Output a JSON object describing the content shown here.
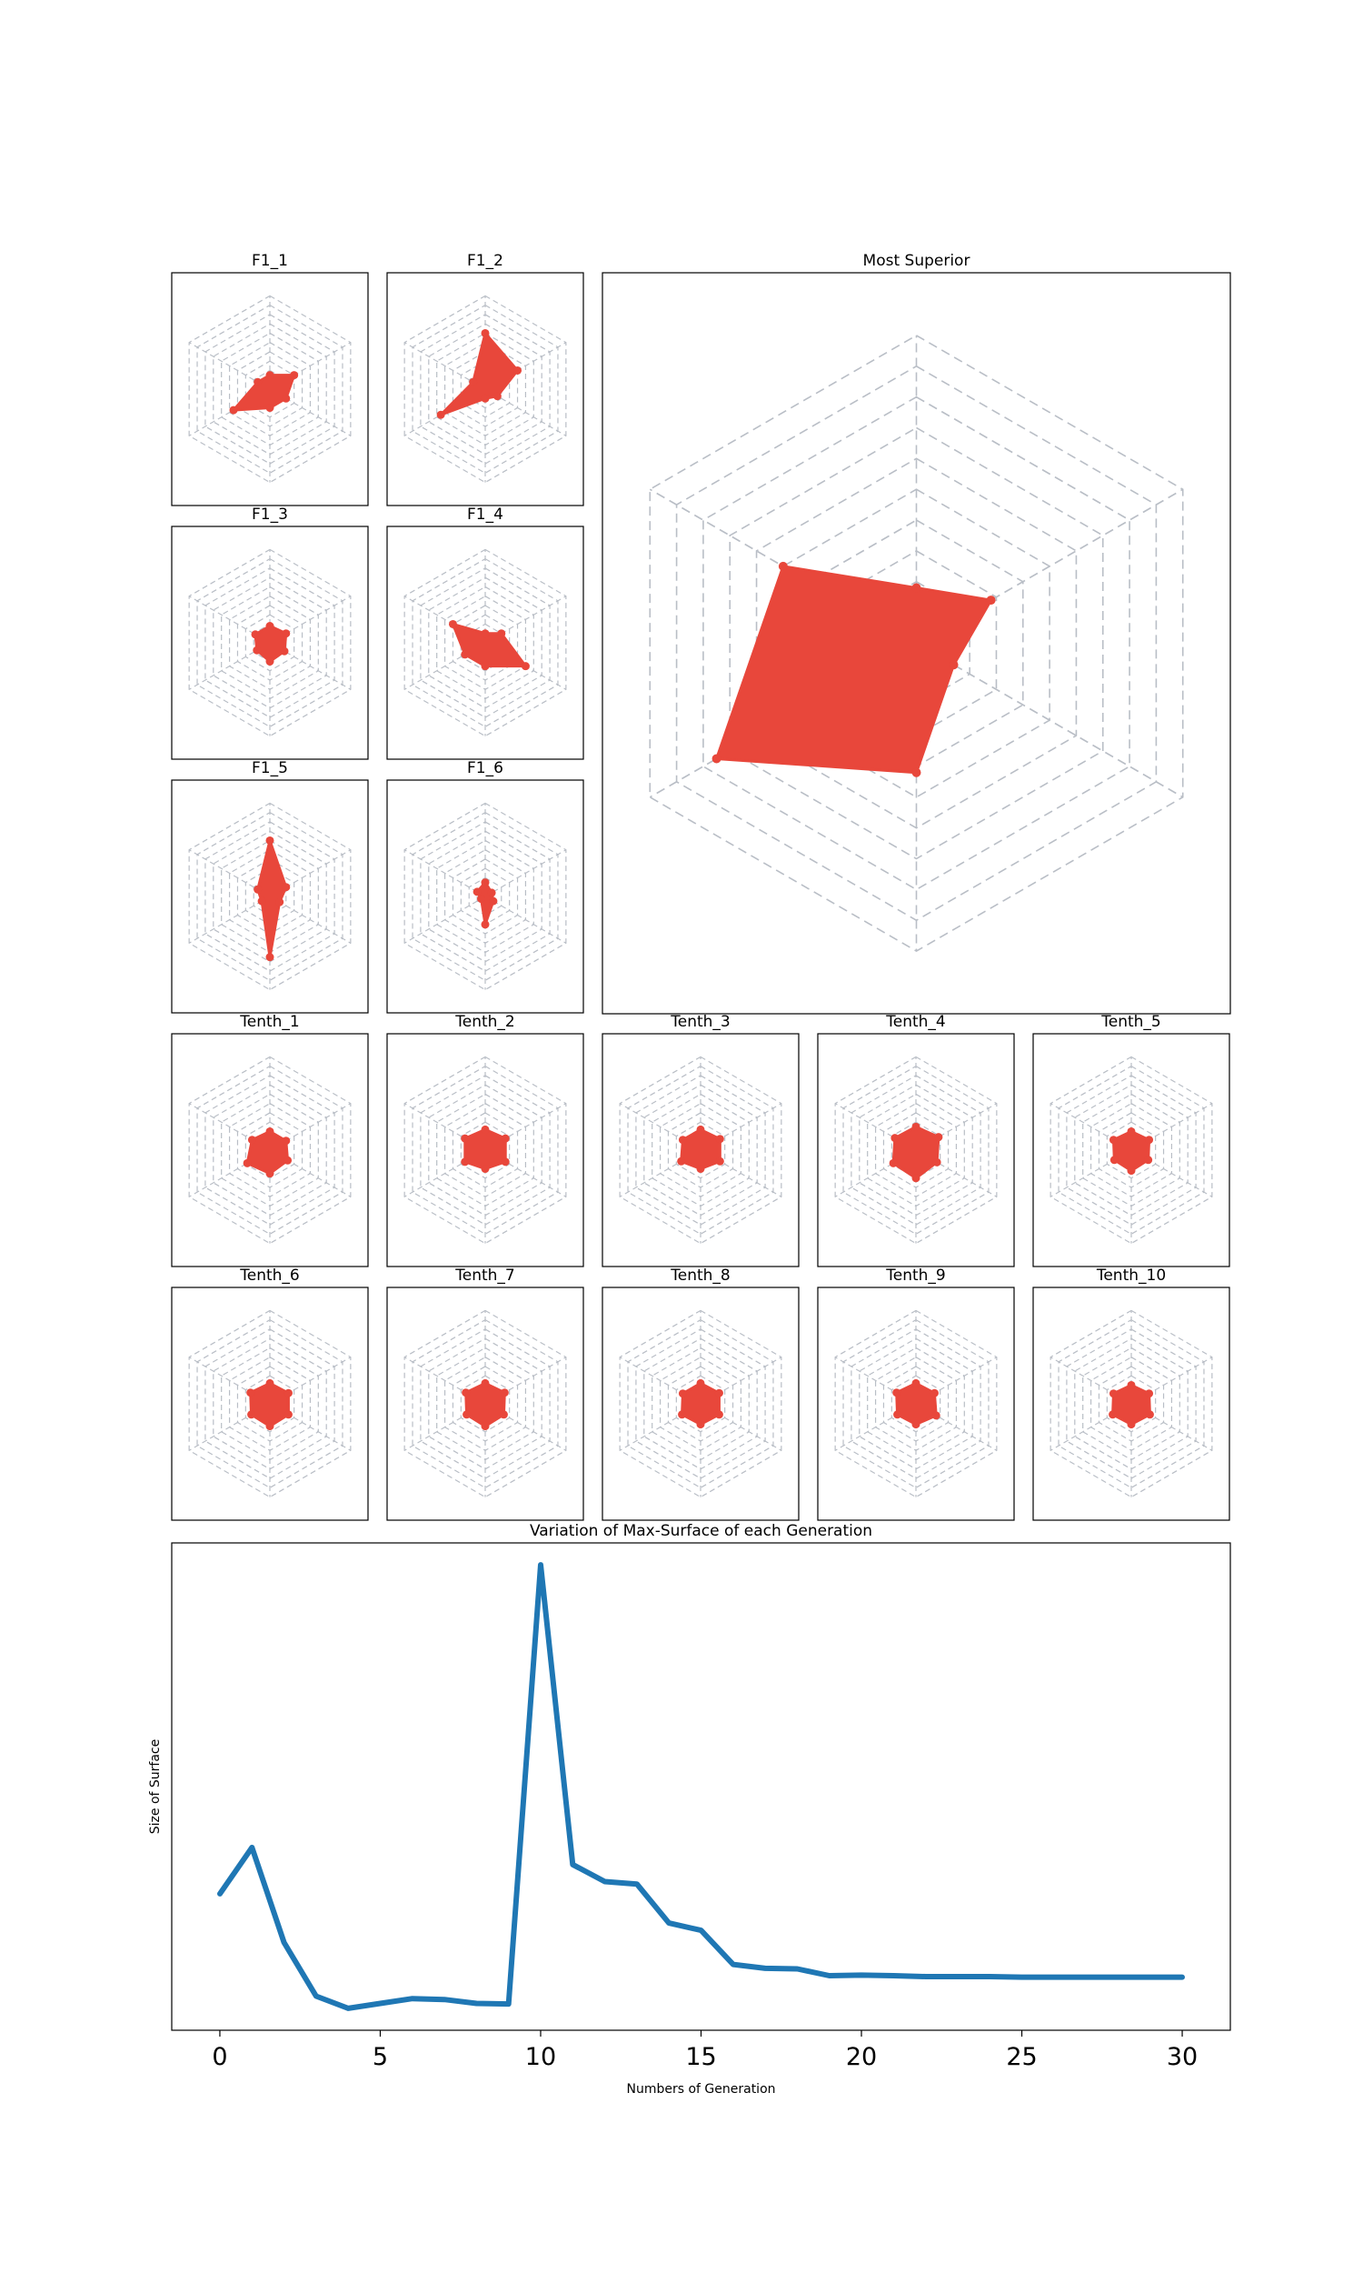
{
  "chart_data": [
    {
      "type": "radar",
      "title": "F1_1",
      "axes": 6,
      "rings": 10,
      "grid": "dashed",
      "max": 10,
      "values": [
        1.5,
        3,
        2,
        2,
        4.5,
        1.5
      ]
    },
    {
      "type": "radar",
      "title": "F1_2",
      "axes": 6,
      "rings": 10,
      "grid": "dashed",
      "max": 10,
      "values": [
        6,
        4,
        1.5,
        1,
        5.5,
        1.5
      ]
    },
    {
      "type": "radar",
      "title": "F1_3",
      "axes": 6,
      "rings": 10,
      "grid": "dashed",
      "max": 10,
      "values": [
        1.8,
        2,
        1.8,
        2,
        1.6,
        1.8
      ]
    },
    {
      "type": "radar",
      "title": "F1_4",
      "axes": 6,
      "rings": 10,
      "grid": "dashed",
      "max": 10,
      "values": [
        1,
        2,
        5,
        2.5,
        2.5,
        4
      ]
    },
    {
      "type": "radar",
      "title": "F1_5",
      "axes": 6,
      "rings": 10,
      "grid": "dashed",
      "max": 10,
      "values": [
        6,
        2,
        1.2,
        6.5,
        1,
        1.5
      ]
    },
    {
      "type": "radar",
      "title": "F1_6",
      "axes": 6,
      "rings": 10,
      "grid": "dashed",
      "max": 10,
      "values": [
        1.5,
        0.8,
        1,
        3,
        0.5,
        1
      ]
    },
    {
      "type": "radar",
      "title": "Most Superior",
      "axes": 6,
      "rings": 10,
      "grid": "dashed",
      "max": 10,
      "values": [
        1.8,
        2.8,
        1.4,
        4.2,
        7.5,
        5
      ]
    },
    {
      "type": "radar",
      "title": "Tenth_1",
      "axes": 6,
      "rings": 10,
      "grid": "dashed",
      "max": 10,
      "values": [
        2,
        2,
        2.2,
        2.5,
        2.8,
        2.2
      ]
    },
    {
      "type": "radar",
      "title": "Tenth_2",
      "axes": 6,
      "rings": 10,
      "grid": "dashed",
      "max": 10,
      "values": [
        2.2,
        2.5,
        2.5,
        2,
        2.5,
        2.5
      ]
    },
    {
      "type": "radar",
      "title": "Tenth_3",
      "axes": 6,
      "rings": 10,
      "grid": "dashed",
      "max": 10,
      "values": [
        2.2,
        2.4,
        2.4,
        2,
        2.4,
        2.2
      ]
    },
    {
      "type": "radar",
      "title": "Tenth_4",
      "axes": 6,
      "rings": 10,
      "grid": "dashed",
      "max": 10,
      "values": [
        2.5,
        2.8,
        2.6,
        3,
        2.8,
        2.6
      ]
    },
    {
      "type": "radar",
      "title": "Tenth_5",
      "axes": 6,
      "rings": 10,
      "grid": "dashed",
      "max": 10,
      "values": [
        2,
        2.2,
        2.1,
        2.2,
        2.1,
        2.2
      ]
    },
    {
      "type": "radar",
      "title": "Tenth_6",
      "axes": 6,
      "rings": 10,
      "grid": "dashed",
      "max": 10,
      "values": [
        2.2,
        2.3,
        2.3,
        2.4,
        2.3,
        2.4
      ]
    },
    {
      "type": "radar",
      "title": "Tenth_7",
      "axes": 6,
      "rings": 10,
      "grid": "dashed",
      "max": 10,
      "values": [
        2.2,
        2.4,
        2.3,
        2.4,
        2.3,
        2.4
      ]
    },
    {
      "type": "radar",
      "title": "Tenth_8",
      "axes": 6,
      "rings": 10,
      "grid": "dashed",
      "max": 10,
      "values": [
        2.2,
        2.3,
        2.3,
        2.2,
        2.3,
        2.2
      ]
    },
    {
      "type": "radar",
      "title": "Tenth_9",
      "axes": 6,
      "rings": 10,
      "grid": "dashed",
      "max": 10,
      "values": [
        2.2,
        2.3,
        2.5,
        2.2,
        2.3,
        2.4
      ]
    },
    {
      "type": "radar",
      "title": "Tenth_10",
      "axes": 6,
      "rings": 10,
      "grid": "dashed",
      "max": 10,
      "values": [
        2,
        2.2,
        2.3,
        2.2,
        2.3,
        2.2
      ]
    },
    {
      "type": "line",
      "title": "Variation of Max-Surface of each Generation",
      "xlabel": "Numbers of Generation",
      "ylabel": "Size of Surface",
      "xlim": [
        -1.5,
        31.5
      ],
      "xticks": [
        0,
        5,
        10,
        15,
        20,
        25,
        30
      ],
      "ylim": [
        0,
        100
      ],
      "y_ticks_shown": false,
      "color": "#1f77b4",
      "x": [
        0,
        1,
        2,
        3,
        4,
        5,
        6,
        7,
        8,
        9,
        10,
        11,
        12,
        13,
        14,
        15,
        16,
        17,
        18,
        19,
        20,
        21,
        22,
        23,
        24,
        25,
        26,
        27,
        28,
        29,
        30
      ],
      "y": [
        28,
        37.5,
        18,
        7,
        4.5,
        5.5,
        6.5,
        6.3,
        5.5,
        5.4,
        95.5,
        34,
        30.5,
        30,
        22,
        20.5,
        13.5,
        12.7,
        12.6,
        11.2,
        11.3,
        11.2,
        11,
        11,
        11,
        10.9,
        10.9,
        10.9,
        10.9,
        10.9,
        10.9
      ]
    }
  ],
  "colors": {
    "radar_fill": "#e8473b",
    "grid": "#b9bec6",
    "line": "#1f77b4"
  }
}
